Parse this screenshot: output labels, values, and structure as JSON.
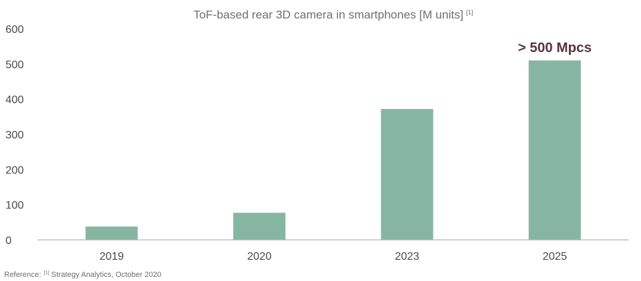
{
  "chart_data": {
    "type": "bar",
    "title": "ToF-based rear 3D camera in smartphones [M units]",
    "title_superscript": "[1]",
    "xlabel": "",
    "ylabel": "",
    "categories": [
      "2019",
      "2020",
      "2023",
      "2025"
    ],
    "values": [
      38,
      77,
      372,
      510
    ],
    "ylim": [
      0,
      600
    ],
    "yticks": [
      "0",
      "100",
      "200",
      "300",
      "400",
      "500",
      "600"
    ],
    "grid": false,
    "legend": "none",
    "colors": {
      "bar": "#86b6a2",
      "axis": "#b3b3b3",
      "annotation": "#5a3440",
      "text": "#4a4a4a"
    },
    "annotations": [
      {
        "category": "2025",
        "text": "> 500 Mpcs"
      }
    ]
  },
  "footer": {
    "reference_prefix": "Reference:",
    "reference_superscript": "[1]",
    "reference_source": "Strategy Analytics, October 2020"
  }
}
